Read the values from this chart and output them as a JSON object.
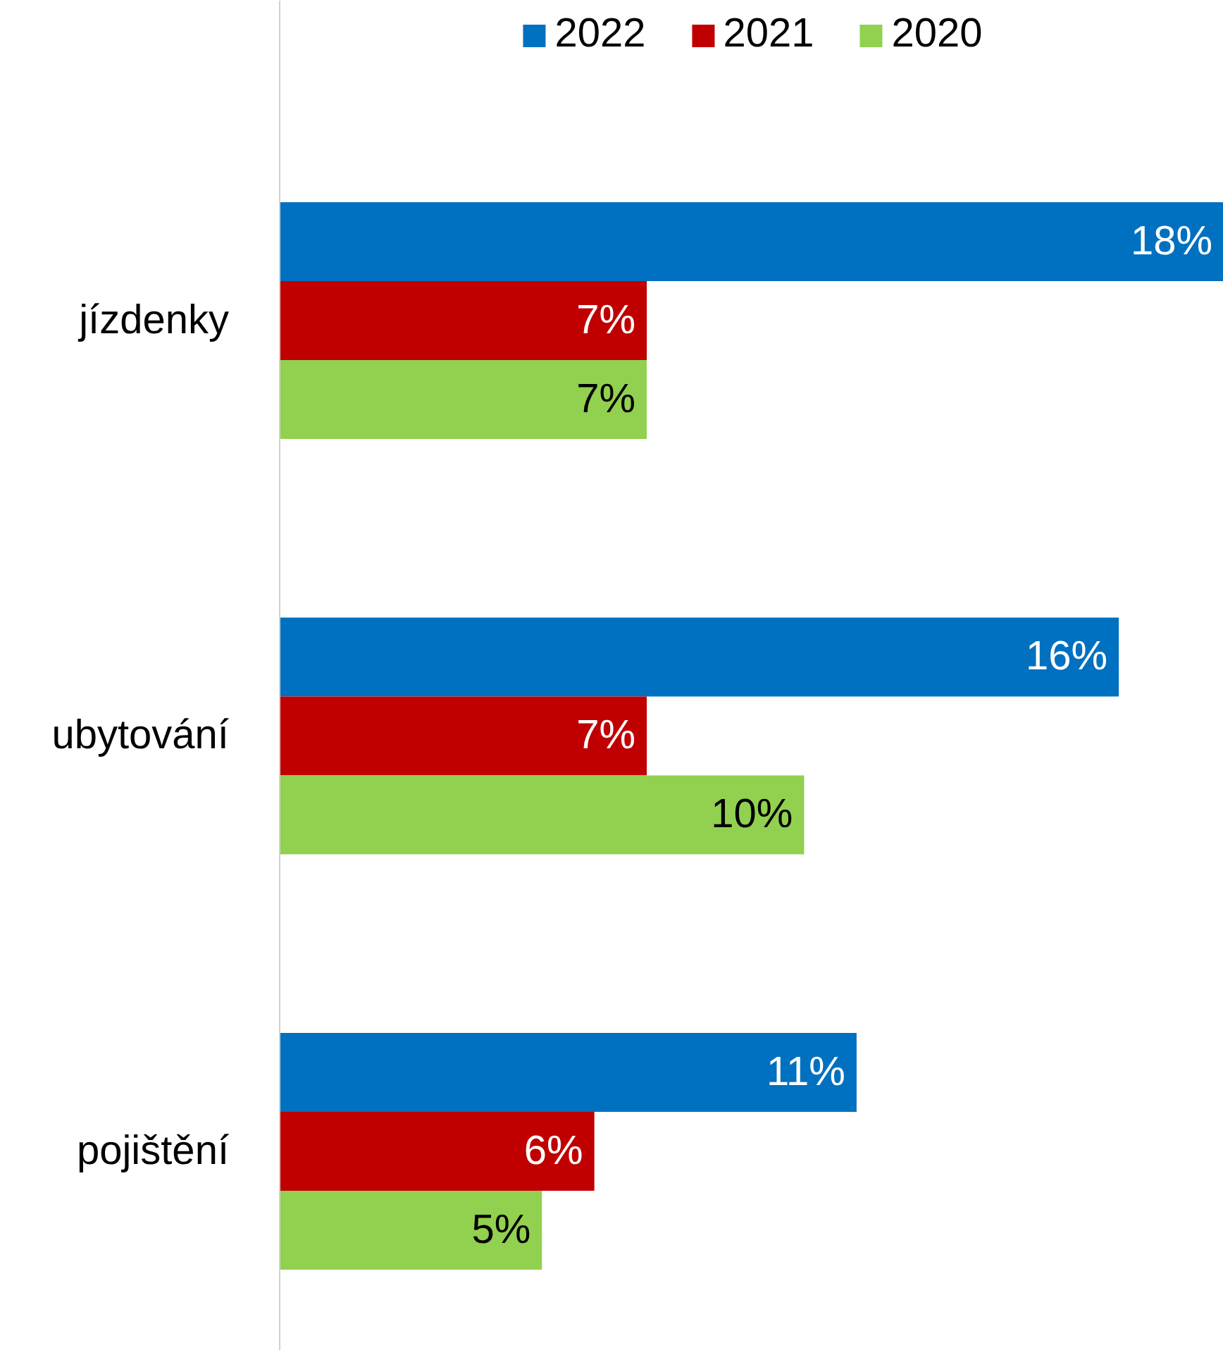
{
  "chart_data": {
    "type": "bar",
    "orientation": "horizontal",
    "categories": [
      "jízdenky",
      "ubytování",
      "pojištění"
    ],
    "series": [
      {
        "name": "2022",
        "color": "#0070c0",
        "values": [
          18,
          16,
          11
        ],
        "value_labels": [
          "18%",
          "16%",
          "11%"
        ]
      },
      {
        "name": "2021",
        "color": "#c00000",
        "values": [
          7,
          7,
          6
        ],
        "value_labels": [
          "7%",
          "7%",
          "6%"
        ]
      },
      {
        "name": "2020",
        "color": "#92d050",
        "values": [
          7,
          10,
          5
        ],
        "value_labels": [
          "7%",
          "10%",
          "5%"
        ]
      }
    ],
    "data_labels": true,
    "legend": "top",
    "grid": false
  }
}
